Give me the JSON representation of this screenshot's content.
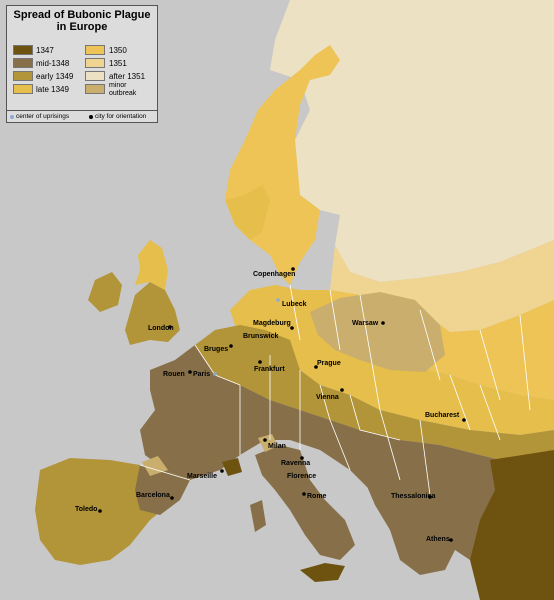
{
  "legend": {
    "title_line1": "Spread of Bubonic Plague",
    "title_line2": "in Europe",
    "items": [
      {
        "label": "1347",
        "color": "#6e5310"
      },
      {
        "label": "mid-1348",
        "color": "#877049"
      },
      {
        "label": "early 1349",
        "color": "#b29439"
      },
      {
        "label": "late 1349",
        "color": "#e6be4b"
      },
      {
        "label": "1350",
        "color": "#edc455"
      },
      {
        "label": "1351",
        "color": "#f0d592"
      },
      {
        "label": "after 1351",
        "color": "#ece1c3"
      },
      {
        "label": "minor outbreak",
        "color": "#c9ae6e"
      }
    ],
    "center_label": "center of uprisings",
    "center_color": "#8fa9d6",
    "city_label": "city for orientation",
    "city_color": "#000000"
  },
  "cities": {
    "copenhagen": "Copenhagen",
    "lubeck": "Lubeck",
    "london": "London",
    "magdeburg": "Magdeburg",
    "brunswick": "Brunswick",
    "warsaw": "Warsaw",
    "bruges": "Bruges",
    "rouen": "Rouen",
    "paris": "Paris",
    "frankfurt": "Frankfurt",
    "prague": "Prague",
    "vienna": "Vienna",
    "bucharest": "Bucharest",
    "milan": "Milan",
    "marseille": "Marseille",
    "ravenna": "Ravenna",
    "florence": "Florence",
    "rome": "Rome",
    "toledo": "Toledo",
    "barcelona": "Barcelona",
    "thessalonica": "Thessalonica",
    "athens": "Athens"
  },
  "colors": {
    "sea": "#c8c8c8",
    "border": "#ffffff"
  }
}
